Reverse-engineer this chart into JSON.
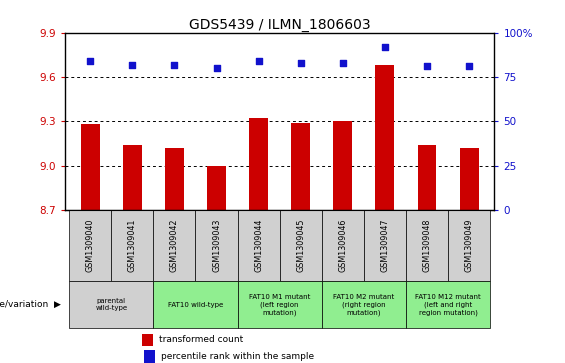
{
  "title": "GDS5439 / ILMN_1806603",
  "samples": [
    "GSM1309040",
    "GSM1309041",
    "GSM1309042",
    "GSM1309043",
    "GSM1309044",
    "GSM1309045",
    "GSM1309046",
    "GSM1309047",
    "GSM1309048",
    "GSM1309049"
  ],
  "transformed_count": [
    9.28,
    9.14,
    9.12,
    9.0,
    9.32,
    9.29,
    9.3,
    9.68,
    9.14,
    9.12
  ],
  "percentile_rank": [
    84,
    82,
    82,
    80,
    84,
    83,
    83,
    92,
    81,
    81
  ],
  "ylim_left": [
    8.7,
    9.9
  ],
  "ylim_right": [
    0,
    100
  ],
  "yticks_left": [
    8.7,
    9.0,
    9.3,
    9.6,
    9.9
  ],
  "yticks_right": [
    0,
    25,
    50,
    75,
    100
  ],
  "bar_color": "#cc0000",
  "dot_color": "#1111cc",
  "title_fontsize": 10,
  "groups_top": [
    {
      "indices": [
        0,
        1
      ],
      "color": "#d0d0d0"
    },
    {
      "indices": [
        2,
        3
      ],
      "color": "#d0d0d0"
    },
    {
      "indices": [
        4,
        5
      ],
      "color": "#d0d0d0"
    },
    {
      "indices": [
        6,
        7
      ],
      "color": "#d0d0d0"
    },
    {
      "indices": [
        8,
        9
      ],
      "color": "#d0d0d0"
    }
  ],
  "groups_bottom": [
    {
      "indices": [
        0,
        1
      ],
      "label": "parental\nwild-type",
      "color": "#d0d0d0"
    },
    {
      "indices": [
        2,
        3
      ],
      "label": "FAT10 wild-type",
      "color": "#90ee90"
    },
    {
      "indices": [
        4,
        5
      ],
      "label": "FAT10 M1 mutant\n(left region\nmutation)",
      "color": "#90ee90"
    },
    {
      "indices": [
        6,
        7
      ],
      "label": "FAT10 M2 mutant\n(right region\nmutation)",
      "color": "#90ee90"
    },
    {
      "indices": [
        8,
        9
      ],
      "label": "FAT10 M12 mutant\n(left and right\nregion mutation)",
      "color": "#90ee90"
    }
  ],
  "legend_items": [
    {
      "label": "transformed count",
      "color": "#cc0000"
    },
    {
      "label": "percentile rank within the sample",
      "color": "#1111cc"
    }
  ],
  "genotype_label": "genotype/variation"
}
